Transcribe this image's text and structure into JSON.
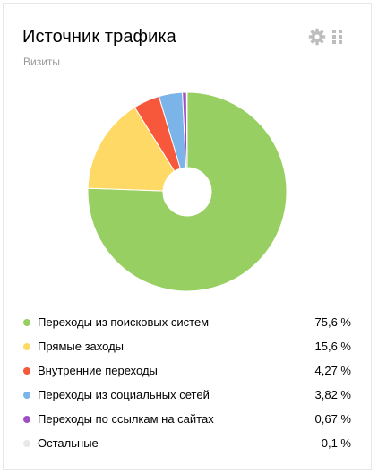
{
  "widget": {
    "title": "Источник трафика",
    "subtitle": "Визиты",
    "icons": {
      "settings": "gear-icon",
      "drag": "drag-handle-icon"
    }
  },
  "chart_data": {
    "type": "pie",
    "donut": true,
    "series": [
      {
        "name": "Переходы из поисковых систем",
        "value": 75.6,
        "label": "75,6 %",
        "color": "#97cf62"
      },
      {
        "name": "Прямые заходы",
        "value": 15.6,
        "label": "15,6 %",
        "color": "#ffd966"
      },
      {
        "name": "Внутренние переходы",
        "value": 4.27,
        "label": "4,27 %",
        "color": "#f7583b"
      },
      {
        "name": "Переходы из социальных сетей",
        "value": 3.82,
        "label": "3,82 %",
        "color": "#7ab4e9"
      },
      {
        "name": "Переходы по ссылкам на сайтах",
        "value": 0.67,
        "label": "0,67 %",
        "color": "#9e4fc4"
      },
      {
        "name": "Остальные",
        "value": 0.1,
        "label": "0,1 %",
        "color": "#e8e8e8"
      }
    ]
  }
}
